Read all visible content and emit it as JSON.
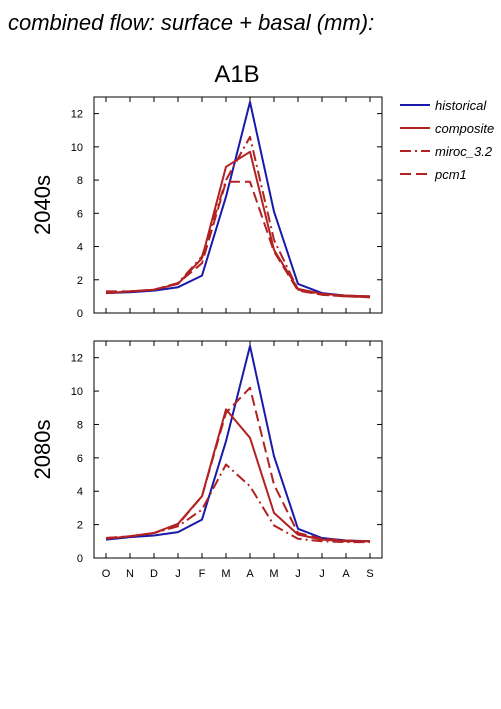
{
  "title": "combined flow: surface + basal (mm):",
  "scenario": "A1B",
  "colors": {
    "historical": "#1a1aaa",
    "composite": "#b22222",
    "miroc_3.2": "#b22222",
    "pcm1": "#b22222"
  },
  "chart_data": [
    {
      "type": "line",
      "ylabel": "2040s",
      "categories": [
        "O",
        "N",
        "D",
        "J",
        "F",
        "M",
        "A",
        "M",
        "J",
        "J",
        "A",
        "S"
      ],
      "yticks": [
        0,
        2,
        4,
        6,
        8,
        10,
        12
      ],
      "ylim": [
        0,
        13
      ],
      "grid": false,
      "legend": "right",
      "series": [
        {
          "name": "historical",
          "style": "solid",
          "values": [
            1.2,
            1.25,
            1.35,
            1.55,
            2.25,
            7.0,
            12.7,
            6.1,
            1.75,
            1.2,
            1.05,
            1.0
          ]
        },
        {
          "name": "composite",
          "style": "solid",
          "values": [
            1.2,
            1.3,
            1.4,
            1.75,
            3.3,
            8.8,
            9.7,
            3.8,
            1.45,
            1.15,
            1.05,
            1.0
          ]
        },
        {
          "name": "miroc_3.2",
          "style": "dashdot",
          "values": [
            1.25,
            1.3,
            1.4,
            1.8,
            3.4,
            8.0,
            10.6,
            4.4,
            1.4,
            1.1,
            1.0,
            0.95
          ]
        },
        {
          "name": "pcm1",
          "style": "dashed",
          "values": [
            1.3,
            1.3,
            1.4,
            1.8,
            3.0,
            7.9,
            7.9,
            3.7,
            1.35,
            1.1,
            1.0,
            0.95
          ]
        }
      ]
    },
    {
      "type": "line",
      "ylabel": "2080s",
      "categories": [
        "O",
        "N",
        "D",
        "J",
        "F",
        "M",
        "A",
        "M",
        "J",
        "J",
        "A",
        "S"
      ],
      "yticks": [
        0,
        2,
        4,
        6,
        8,
        10,
        12
      ],
      "ylim": [
        0,
        13
      ],
      "grid": false,
      "legend": "right",
      "series": [
        {
          "name": "historical",
          "style": "solid",
          "values": [
            1.1,
            1.25,
            1.35,
            1.55,
            2.3,
            7.0,
            12.7,
            6.1,
            1.75,
            1.2,
            1.05,
            1.0
          ]
        },
        {
          "name": "composite",
          "style": "solid",
          "values": [
            1.15,
            1.3,
            1.5,
            2.05,
            3.7,
            8.9,
            7.2,
            2.7,
            1.4,
            1.1,
            1.0,
            1.0
          ]
        },
        {
          "name": "miroc_3.2",
          "style": "dashdot",
          "values": [
            1.2,
            1.3,
            1.5,
            1.9,
            2.9,
            5.6,
            4.3,
            1.95,
            1.15,
            1.0,
            0.95,
            0.95
          ]
        },
        {
          "name": "pcm1",
          "style": "dashed",
          "values": [
            1.2,
            1.3,
            1.5,
            2.0,
            3.7,
            8.7,
            10.2,
            4.4,
            1.5,
            1.15,
            1.05,
            1.0
          ]
        }
      ]
    }
  ]
}
